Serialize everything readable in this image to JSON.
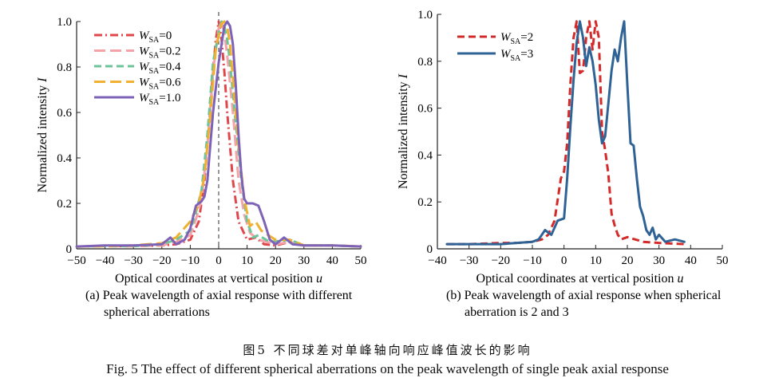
{
  "figure": {
    "caption_zh": "图5   不同球差对单峰轴向响应峰值波长的影响",
    "caption_en": "Fig. 5    The effect of different spherical aberrations on the peak wavelength of single peak axial response"
  },
  "chart_data": [
    {
      "type": "line",
      "sublabel_line1": "(a) Peak wavelength of axial response with different",
      "sublabel_line2": "spherical aberrations",
      "xlabel": "Optical coordinates at vertical position u",
      "ylabel": "Normalized intensity I",
      "xlim": [
        -50,
        50
      ],
      "ylim": [
        0,
        1.0
      ],
      "xticks": [
        -50,
        -40,
        -30,
        -20,
        -10,
        0,
        10,
        20,
        30,
        40,
        50
      ],
      "yticks": [
        0,
        0.2,
        0.4,
        0.6,
        0.8,
        1.0
      ],
      "ytick_labels": [
        "0",
        "0.2",
        "0.4",
        "0.6",
        "0.8",
        "1.0"
      ],
      "vline_x": 0,
      "legend_position": "top-left",
      "series": [
        {
          "name": "W_SA=0",
          "color": "#e0474c",
          "dash": "dashdot",
          "x": [
            -50,
            -40,
            -30,
            -20,
            -15,
            -10,
            -7,
            -5,
            -3,
            -2,
            -1,
            0,
            1,
            2,
            3,
            5,
            7,
            10,
            13,
            16,
            20,
            25,
            30,
            40,
            50
          ],
          "y": [
            0.01,
            0.012,
            0.012,
            0.015,
            0.02,
            0.04,
            0.12,
            0.3,
            0.6,
            0.78,
            0.92,
            1.0,
            0.92,
            0.78,
            0.6,
            0.3,
            0.12,
            0.04,
            0.05,
            0.02,
            0.015,
            0.03,
            0.015,
            0.015,
            0.01
          ]
        },
        {
          "name": "W_SA=0.2",
          "color": "#f4a3a8",
          "dash": "longdash",
          "x": [
            -50,
            -40,
            -30,
            -20,
            -15,
            -10,
            -8,
            -6,
            -4,
            -2,
            0,
            1,
            2,
            3,
            5,
            7,
            9,
            11,
            14,
            20,
            25,
            30,
            40,
            50
          ],
          "y": [
            0.01,
            0.012,
            0.012,
            0.015,
            0.03,
            0.06,
            0.13,
            0.22,
            0.45,
            0.78,
            0.97,
            1.0,
            0.95,
            0.85,
            0.6,
            0.3,
            0.15,
            0.07,
            0.04,
            0.02,
            0.03,
            0.015,
            0.015,
            0.01
          ]
        },
        {
          "name": "W_SA=0.4",
          "color": "#6cc59a",
          "dash": "dash",
          "x": [
            -50,
            -40,
            -30,
            -20,
            -15,
            -10,
            -8,
            -6,
            -4,
            -2,
            0,
            1,
            2,
            3,
            4,
            6,
            8,
            10,
            12,
            14,
            18,
            25,
            30,
            40,
            50
          ],
          "y": [
            0.01,
            0.012,
            0.012,
            0.02,
            0.04,
            0.08,
            0.16,
            0.26,
            0.5,
            0.82,
            0.95,
            1.0,
            0.98,
            0.92,
            0.82,
            0.55,
            0.3,
            0.12,
            0.05,
            0.06,
            0.03,
            0.04,
            0.015,
            0.015,
            0.01
          ]
        },
        {
          "name": "W_SA=0.6",
          "color": "#f0b030",
          "dash": "longdash",
          "x": [
            -50,
            -40,
            -30,
            -20,
            -15,
            -10,
            -7,
            -5,
            -3,
            -1,
            1,
            2,
            3,
            4,
            5,
            7,
            9,
            11,
            13,
            15,
            20,
            25,
            30,
            40,
            50
          ],
          "y": [
            0.01,
            0.012,
            0.015,
            0.025,
            0.05,
            0.12,
            0.2,
            0.32,
            0.58,
            0.88,
            0.99,
            1.0,
            0.98,
            0.9,
            0.75,
            0.45,
            0.22,
            0.1,
            0.12,
            0.08,
            0.04,
            0.04,
            0.015,
            0.015,
            0.01
          ]
        },
        {
          "name": "W_SA=1.0",
          "color": "#7d62b8",
          "dash": "solid",
          "x": [
            -50,
            -40,
            -30,
            -20,
            -17,
            -15,
            -12,
            -10,
            -8,
            -6,
            -5,
            -4,
            -2,
            0,
            1,
            2,
            3,
            4,
            5,
            6,
            7,
            8,
            9,
            10,
            11,
            12,
            14,
            16,
            18,
            20,
            23,
            26,
            30,
            40,
            50
          ],
          "y": [
            0.01,
            0.015,
            0.015,
            0.02,
            0.05,
            0.02,
            0.04,
            0.09,
            0.19,
            0.21,
            0.23,
            0.3,
            0.6,
            0.82,
            0.9,
            0.98,
            1.0,
            0.98,
            0.9,
            0.72,
            0.5,
            0.32,
            0.22,
            0.2,
            0.2,
            0.2,
            0.19,
            0.12,
            0.04,
            0.02,
            0.05,
            0.02,
            0.015,
            0.015,
            0.01
          ]
        }
      ]
    },
    {
      "type": "line",
      "sublabel_line1": "(b) Peak wavelength of axial response when spherical",
      "sublabel_line2": "aberration is 2 and 3",
      "xlabel": "Optical coordinates at vertical position u",
      "ylabel": "Normalized intensity I",
      "xlim": [
        -40,
        50
      ],
      "ylim": [
        0,
        1.0
      ],
      "xticks": [
        -40,
        -30,
        -20,
        -10,
        0,
        10,
        20,
        30,
        40,
        50
      ],
      "yticks": [
        0,
        0.2,
        0.4,
        0.6,
        0.8,
        1.0
      ],
      "ytick_labels": [
        "0",
        "0.2",
        "0.4",
        "0.6",
        "0.8",
        "1.0"
      ],
      "legend_position": "top-left",
      "series": [
        {
          "name": "W_SA=2",
          "color": "#d42a2a",
          "dash": "dash",
          "x": [
            -37,
            -30,
            -20,
            -15,
            -10,
            -7,
            -5,
            -3,
            -1,
            0,
            1,
            2,
            3,
            4,
            5,
            6,
            7,
            8,
            9,
            10,
            11,
            12,
            13,
            14,
            15,
            16,
            17,
            18,
            20,
            25,
            30,
            38
          ],
          "y": [
            0.02,
            0.02,
            0.025,
            0.025,
            0.03,
            0.04,
            0.06,
            0.12,
            0.3,
            0.33,
            0.45,
            0.7,
            0.9,
            0.97,
            0.75,
            0.76,
            0.9,
            0.97,
            0.85,
            0.97,
            0.9,
            0.5,
            0.42,
            0.32,
            0.15,
            0.1,
            0.06,
            0.04,
            0.05,
            0.03,
            0.025,
            0.02
          ]
        },
        {
          "name": "W_SA=3",
          "color": "#2f6396",
          "dash": "solid",
          "x": [
            -37,
            -30,
            -20,
            -15,
            -10,
            -8,
            -6,
            -4,
            -2,
            0,
            1,
            2,
            3,
            4,
            5,
            6,
            7,
            8,
            9,
            10,
            11,
            12,
            13,
            14,
            15,
            16,
            17,
            18,
            19,
            20,
            21,
            22,
            23,
            24,
            25,
            26,
            27,
            28,
            29,
            30,
            32,
            35,
            38
          ],
          "y": [
            0.02,
            0.02,
            0.02,
            0.025,
            0.03,
            0.04,
            0.08,
            0.06,
            0.12,
            0.13,
            0.3,
            0.52,
            0.72,
            0.88,
            0.97,
            0.9,
            0.78,
            0.86,
            0.8,
            0.7,
            0.55,
            0.45,
            0.48,
            0.62,
            0.76,
            0.85,
            0.8,
            0.9,
            0.97,
            0.7,
            0.45,
            0.44,
            0.3,
            0.18,
            0.14,
            0.08,
            0.06,
            0.09,
            0.04,
            0.06,
            0.03,
            0.04,
            0.03
          ]
        }
      ]
    }
  ]
}
